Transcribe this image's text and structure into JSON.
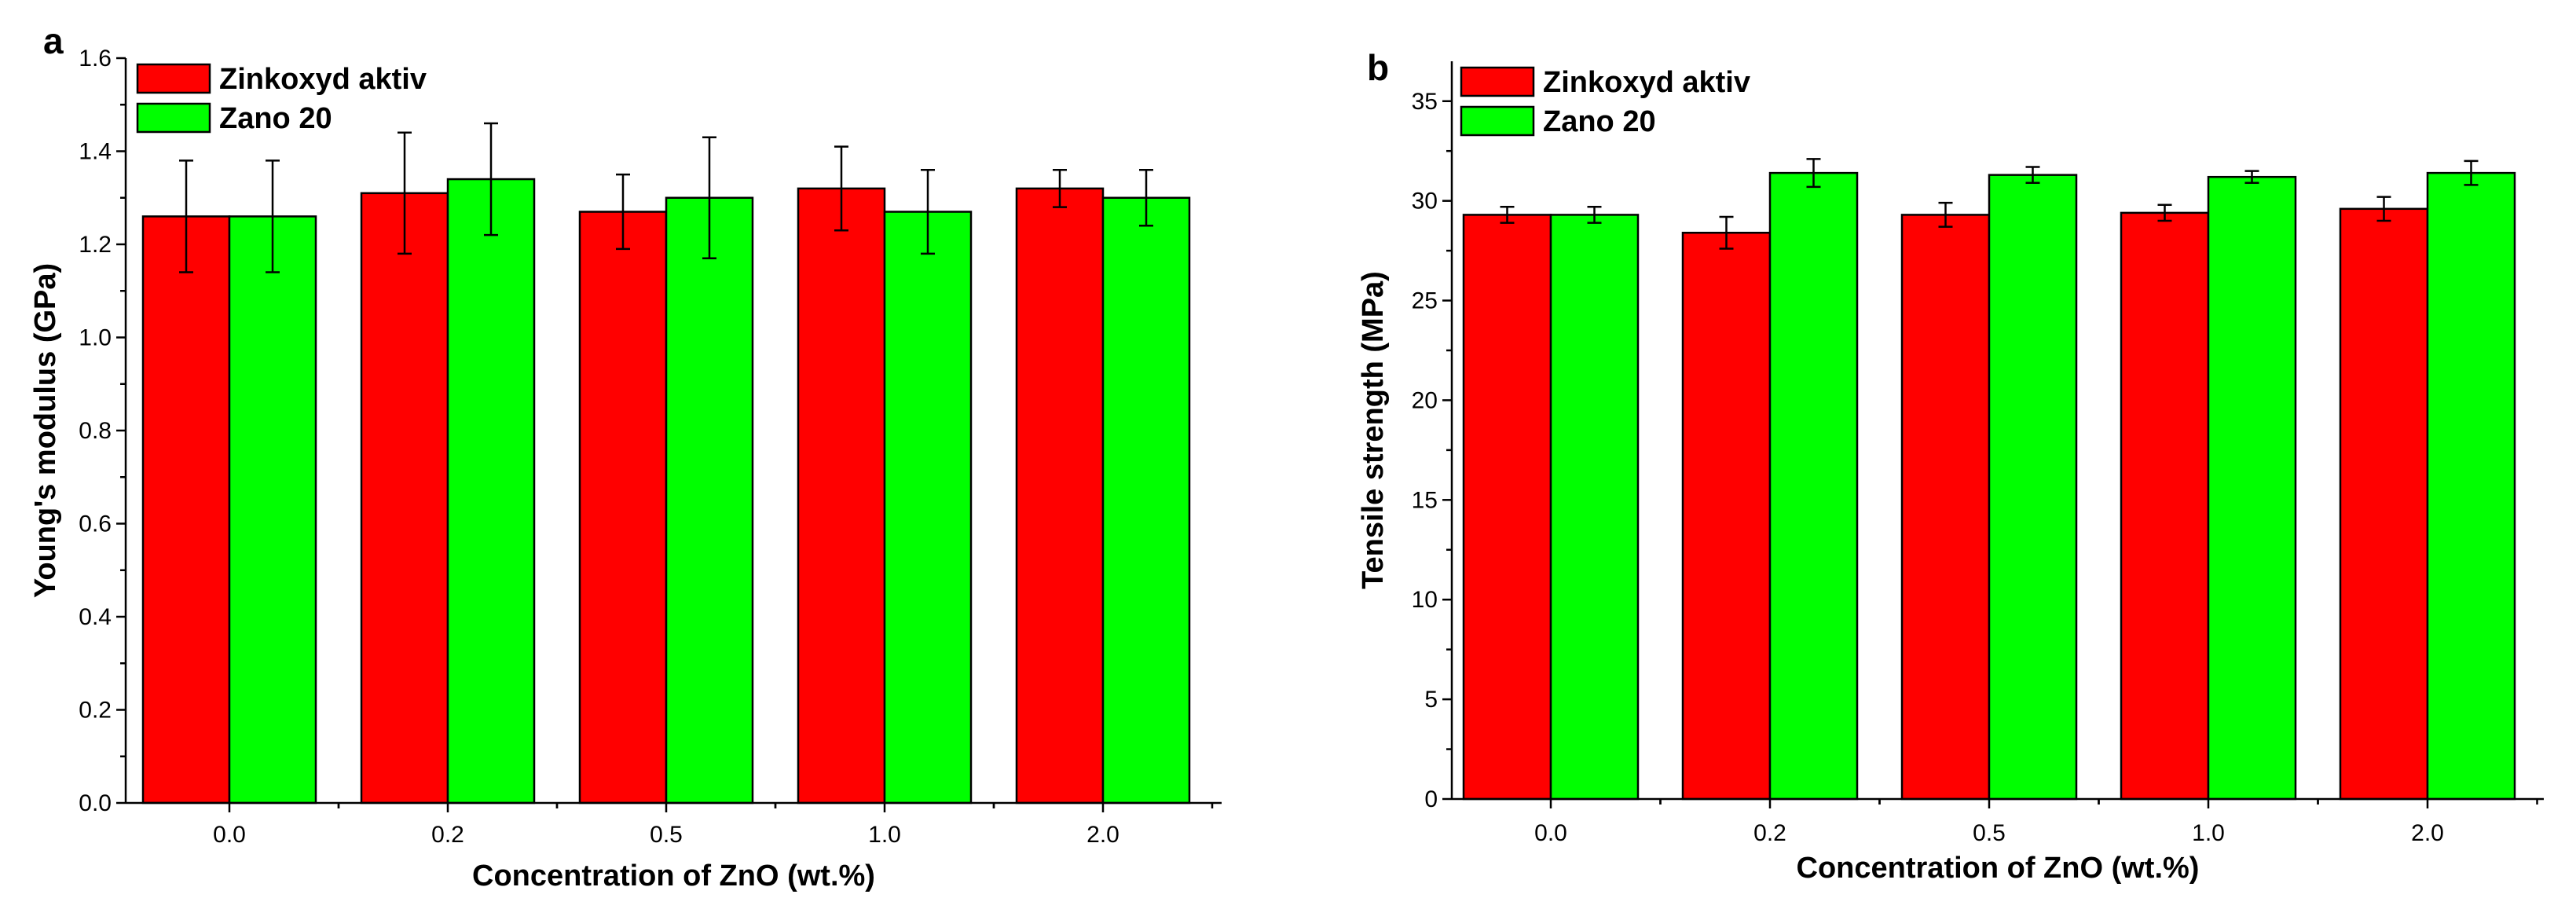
{
  "chart_data": [
    {
      "panel": "a",
      "type": "bar",
      "categories": [
        "0.0",
        "0.2",
        "0.5",
        "1.0",
        "2.0"
      ],
      "series": [
        {
          "name": "Zinkoxyd aktiv",
          "color": "#ff0000",
          "values": [
            1.26,
            1.31,
            1.27,
            1.32,
            1.32
          ],
          "errors": [
            0.12,
            0.13,
            0.08,
            0.09,
            0.04
          ]
        },
        {
          "name": "Zano 20",
          "color": "#00ff00",
          "values": [
            1.26,
            1.34,
            1.3,
            1.27,
            1.3
          ],
          "errors": [
            0.12,
            0.12,
            0.13,
            0.09,
            0.06
          ]
        }
      ],
      "xlabel": "Concentration of ZnO (wt.%)",
      "ylabel": "Young's modulus (GPa)",
      "ylim": [
        0,
        1.6
      ],
      "yticks": [
        "0.0",
        "0.2",
        "0.4",
        "0.6",
        "0.8",
        "1.0",
        "1.2",
        "1.4",
        "1.6"
      ],
      "legend_position": "top-left",
      "grid": false
    },
    {
      "panel": "b",
      "type": "bar",
      "categories": [
        "0.0",
        "0.2",
        "0.5",
        "1.0",
        "2.0"
      ],
      "series": [
        {
          "name": "Zinkoxyd aktiv",
          "color": "#ff0000",
          "values": [
            29.3,
            28.4,
            29.3,
            29.4,
            29.6
          ],
          "errors": [
            0.4,
            0.8,
            0.6,
            0.4,
            0.6
          ]
        },
        {
          "name": "Zano 20",
          "color": "#00ff00",
          "values": [
            29.3,
            31.4,
            31.3,
            31.2,
            31.4
          ],
          "errors": [
            0.4,
            0.7,
            0.4,
            0.3,
            0.6
          ]
        }
      ],
      "xlabel": "Concentration of ZnO (wt.%)",
      "ylabel": "Tensile strength (MPa)",
      "ylim": [
        0,
        37
      ],
      "yticks": [
        "0",
        "5",
        "10",
        "15",
        "20",
        "25",
        "30",
        "35"
      ],
      "legend_position": "top-left",
      "grid": false
    }
  ]
}
